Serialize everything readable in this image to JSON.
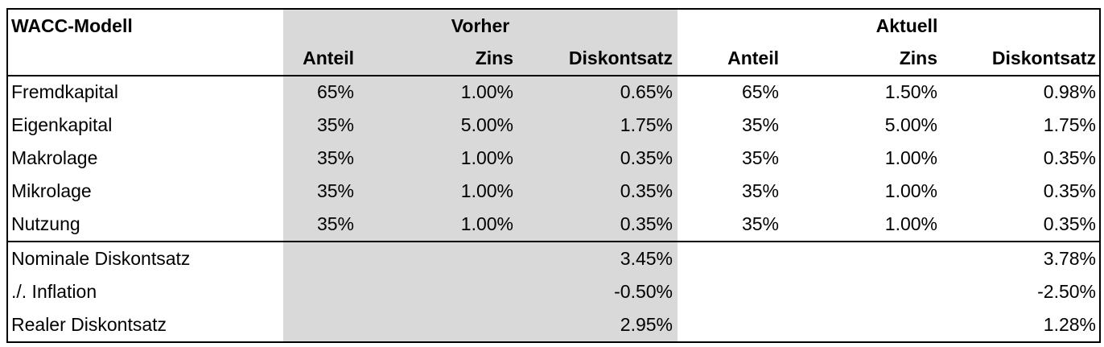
{
  "table": {
    "title": "WACC-Modell",
    "groups": [
      "Vorher",
      "Aktuell"
    ],
    "columns": [
      "Anteil",
      "Zins",
      "Diskontsatz",
      "Anteil",
      "Zins",
      "Diskontsatz"
    ],
    "rows": [
      [
        "Fremdkapital",
        "65%",
        "1.00%",
        "0.65%",
        "65%",
        "1.50%",
        "0.98%"
      ],
      [
        "Eigenkapital",
        "35%",
        "5.00%",
        "1.75%",
        "35%",
        "5.00%",
        "1.75%"
      ],
      [
        "Makrolage",
        "35%",
        "1.00%",
        "0.35%",
        "35%",
        "1.00%",
        "0.35%"
      ],
      [
        "Mikrolage",
        "35%",
        "1.00%",
        "0.35%",
        "35%",
        "1.00%",
        "0.35%"
      ],
      [
        "Nutzung",
        "35%",
        "1.00%",
        "0.35%",
        "35%",
        "1.00%",
        "0.35%"
      ]
    ],
    "summary": [
      [
        "Nominale Diskontsatz",
        "3.45%",
        "3.78%"
      ],
      [
        "./. Inflation",
        "-0.50%",
        "-2.50%"
      ],
      [
        "Realer Diskontsatz",
        "2.95%",
        "1.28%"
      ]
    ]
  }
}
